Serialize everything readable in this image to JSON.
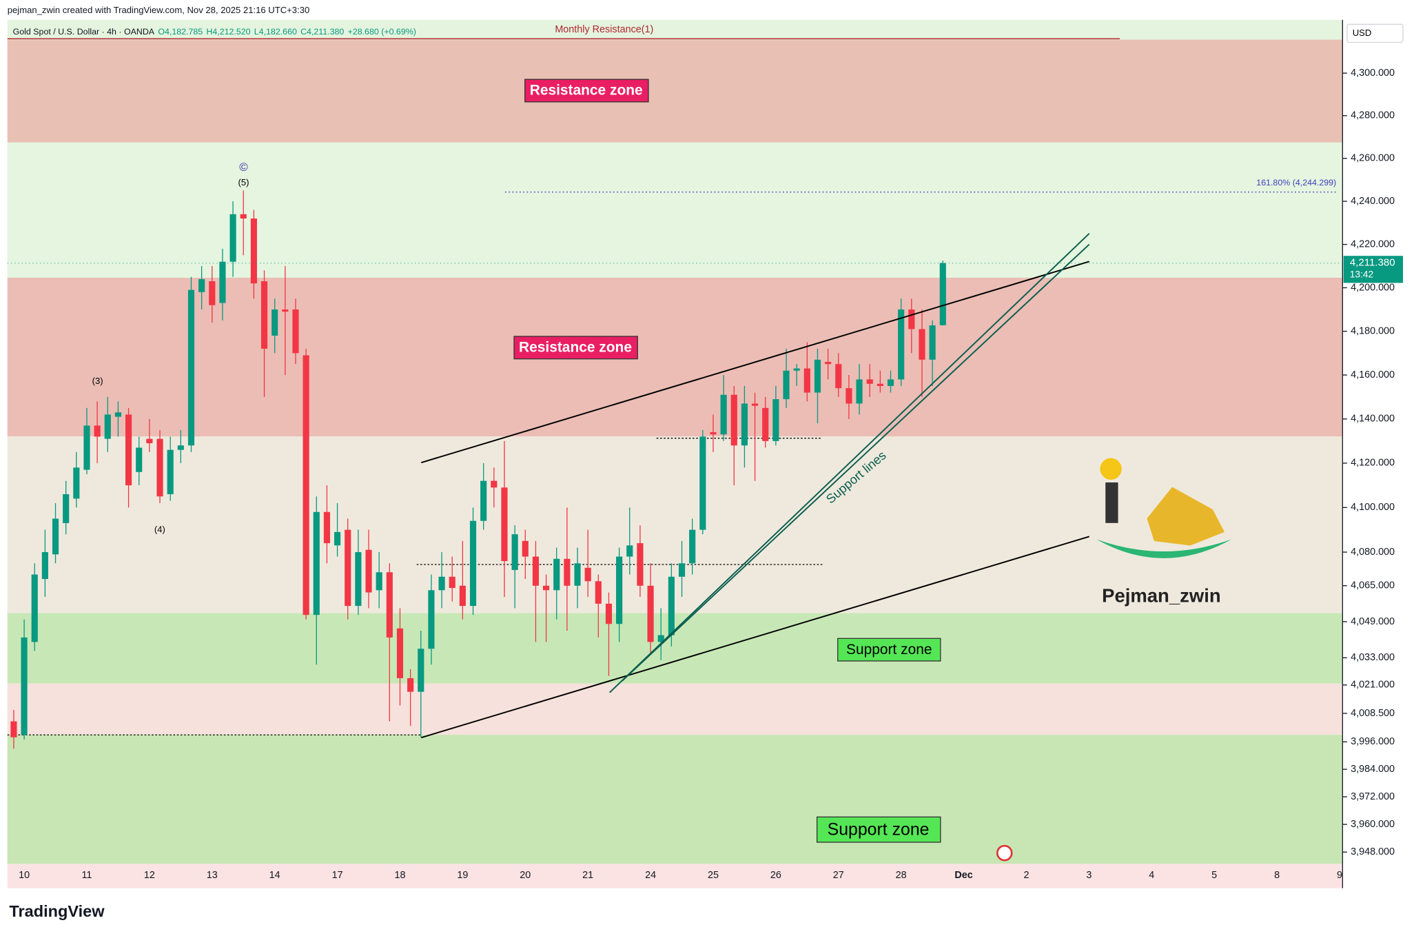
{
  "credit": "pejman_zwin created with TradingView.com, Nov 28, 2025 21:16 UTC+3:30",
  "brand": "TradingView",
  "watermark": "Pejman_zwin",
  "chart_data": {
    "type": "candlestick",
    "title": "Gold Spot / U.S. Dollar · 4h · OANDA",
    "ohlc_labels": {
      "open": "O4,182.785",
      "high": "H4,212.520",
      "low": "L4,182.660",
      "close": "C4,211.380",
      "change": "+28.680 (+0.69%)"
    },
    "currency": "USD",
    "last_price_label": "4,211.380",
    "countdown": "13:42",
    "log_scale": true,
    "up_color": "#089981",
    "down_color": "#f23645",
    "ylim": [
      3942.9,
      4325.2
    ],
    "yticks": [
      {
        "value": 4300,
        "label": "4,300.000"
      },
      {
        "value": 4280,
        "label": "4,280.000"
      },
      {
        "value": 4260,
        "label": "4,260.000"
      },
      {
        "value": 4240,
        "label": "4,240.000"
      },
      {
        "value": 4220,
        "label": "4,220.000"
      },
      {
        "value": 4200,
        "label": "4,200.000"
      },
      {
        "value": 4180,
        "label": "4,180.000"
      },
      {
        "value": 4160,
        "label": "4,160.000"
      },
      {
        "value": 4140,
        "label": "4,140.000"
      },
      {
        "value": 4120,
        "label": "4,120.000"
      },
      {
        "value": 4100,
        "label": "4,100.000"
      },
      {
        "value": 4080,
        "label": "4,080.000"
      },
      {
        "value": 4065,
        "label": "4,065.000"
      },
      {
        "value": 4049,
        "label": "4,049.000"
      },
      {
        "value": 4033,
        "label": "4,033.000"
      },
      {
        "value": 4021,
        "label": "4,021.000"
      },
      {
        "value": 4008.5,
        "label": "4,008.500"
      },
      {
        "value": 3996,
        "label": "3,996.000"
      },
      {
        "value": 3984,
        "label": "3,984.000"
      },
      {
        "value": 3972,
        "label": "3,972.000"
      },
      {
        "value": 3960,
        "label": "3,960.000"
      },
      {
        "value": 3948,
        "label": "3,948.000"
      }
    ],
    "xticks": [
      "10",
      "11",
      "12",
      "13",
      "14",
      "17",
      "18",
      "19",
      "20",
      "21",
      "24",
      "25",
      "26",
      "27",
      "28",
      "Dec",
      "2",
      "3",
      "4",
      "5",
      "8",
      "9"
    ],
    "candles": {
      "open": [
        4005,
        3999,
        4040,
        4068,
        4079,
        4093,
        4104,
        4117,
        4137,
        4131,
        4141,
        4142,
        4116,
        4131,
        4131,
        4106,
        4126,
        4128,
        4198,
        4203,
        4193,
        4212,
        4234,
        4232,
        4203,
        4178,
        4190,
        4190,
        4169,
        4052,
        4098,
        4083,
        4090,
        4056,
        4081,
        4063,
        4071,
        4046,
        4024,
        4018,
        4037,
        4063,
        4069,
        4065,
        4056,
        4094,
        4112,
        4109,
        4072,
        4085,
        4078,
        4065,
        4063,
        4077,
        4065,
        4073,
        4067,
        4057,
        4048,
        4078,
        4084,
        4065,
        4040,
        4043,
        4069,
        4075,
        4090,
        4134,
        4133,
        4151,
        4128,
        4147,
        4145,
        4130,
        4149,
        4162,
        4163,
        4152,
        4166,
        4165,
        4154,
        4147,
        4158,
        4156,
        4155,
        4158,
        4190,
        4181,
        4167,
        4182.785
      ],
      "high": [
        4010,
        4050,
        4075,
        4090,
        4102,
        4112,
        4125,
        4145,
        4148,
        4150,
        4148,
        4145,
        4132,
        4140,
        4135,
        4132,
        4135,
        4205,
        4210,
        4210,
        4218,
        4240,
        4245,
        4236,
        4208,
        4195,
        4210,
        4195,
        4172,
        4105,
        4110,
        4102,
        4095,
        4090,
        4090,
        4080,
        4075,
        4055,
        4028,
        4045,
        4070,
        4080,
        4078,
        4085,
        4100,
        4120,
        4118,
        4130,
        4092,
        4090,
        4085,
        4070,
        4082,
        4100,
        4082,
        4090,
        4070,
        4062,
        4082,
        4100,
        4092,
        4075,
        4055,
        4075,
        4085,
        4095,
        4135,
        4142,
        4160,
        4155,
        4155,
        4152,
        4150,
        4155,
        4172,
        4165,
        4175,
        4172,
        4172,
        4170,
        4160,
        4165,
        4165,
        4162,
        4162,
        4195,
        4195,
        4190,
        4185,
        4212.52
      ],
      "low": [
        3993,
        3997,
        4036,
        4060,
        4075,
        4088,
        4100,
        4115,
        4120,
        4125,
        4132,
        4100,
        4110,
        4125,
        4102,
        4103,
        4120,
        4125,
        4190,
        4184,
        4185,
        4205,
        4215,
        4195,
        4150,
        4170,
        4160,
        4165,
        4050,
        4030,
        4075,
        4078,
        4050,
        4052,
        4055,
        4055,
        4005,
        4012,
        4003,
        3998,
        4030,
        4055,
        4058,
        4050,
        4052,
        4090,
        4100,
        4060,
        4055,
        4068,
        4040,
        4040,
        4050,
        4045,
        4055,
        4060,
        4042,
        4025,
        4040,
        4070,
        4060,
        4035,
        4032,
        4038,
        4060,
        4070,
        4088,
        4125,
        4130,
        4110,
        4118,
        4112,
        4127,
        4128,
        4145,
        4155,
        4148,
        4138,
        4158,
        4150,
        4140,
        4142,
        4150,
        4152,
        4152,
        4155,
        4170,
        4150,
        4155,
        4182.66
      ],
      "close": [
        3998,
        4042,
        4070,
        4080,
        4095,
        4106,
        4118,
        4137,
        4132,
        4142,
        4143,
        4110,
        4127,
        4129,
        4105,
        4126,
        4128,
        4199,
        4204,
        4192,
        4212,
        4234,
        4232,
        4202,
        4172,
        4190,
        4189,
        4170,
        4052,
        4098,
        4084,
        4089,
        4056,
        4080,
        4062,
        4071,
        4042,
        4024,
        4018,
        4037,
        4063,
        4069,
        4064,
        4056,
        4094,
        4112,
        4109,
        4076,
        4088,
        4078,
        4065,
        4063,
        4077,
        4065,
        4075,
        4067,
        4057,
        4048,
        4078,
        4083,
        4065,
        4040,
        4043,
        4069,
        4075,
        4090,
        4132,
        4133,
        4151,
        4128,
        4147,
        4146,
        4130,
        4149,
        4162,
        4163,
        4152,
        4167,
        4165,
        4154,
        4147,
        4158,
        4156,
        4155,
        4158,
        4190,
        4181,
        4167,
        4182.7,
        4211.38
      ]
    },
    "fib_level": {
      "value": 4244.299,
      "label": "161.80% (4,244.299)"
    },
    "monthly_resistance": "Monthly Resistance(1)",
    "zone_labels": [
      "Resistance zone",
      "Resistance zone",
      "Support zone",
      "Support zone"
    ],
    "trend_label": "Support lines",
    "wave_labels": [
      "(3)",
      "(4)",
      "(5)",
      "©"
    ]
  }
}
